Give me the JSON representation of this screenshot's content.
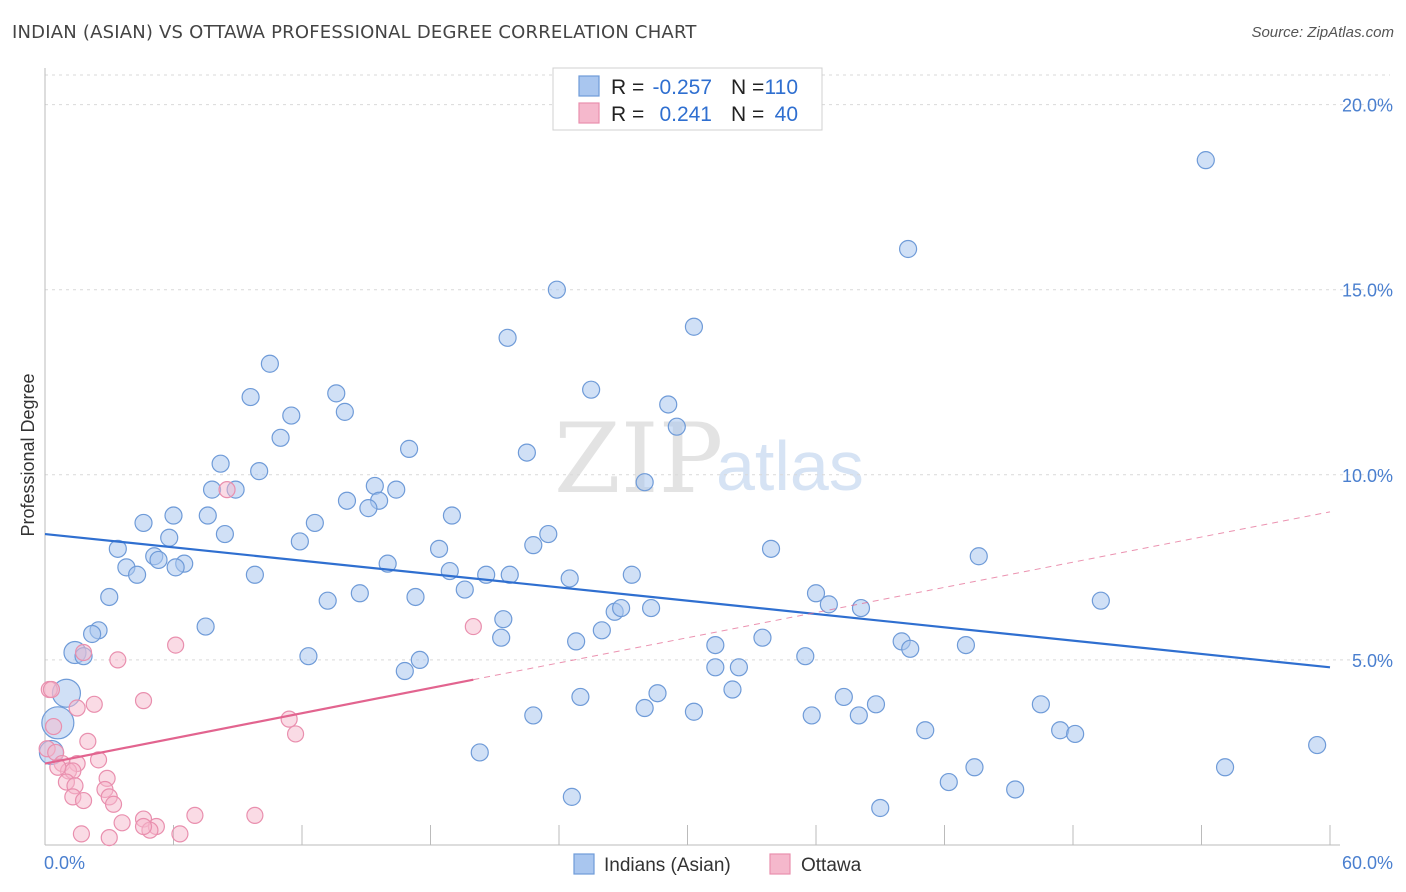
{
  "header": {
    "title": "INDIAN (ASIAN) VS OTTAWA PROFESSIONAL DEGREE CORRELATION CHART",
    "source": "Source: ZipAtlas.com"
  },
  "watermark": {
    "part1": "ZIP",
    "part2": "atlas"
  },
  "legend_top": {
    "rows": [
      {
        "r_label": "R =",
        "r_value": "-0.257",
        "n_label": "N =",
        "n_value": "110"
      },
      {
        "r_label": "R =",
        "r_value": "0.241",
        "n_label": "N =",
        "n_value": "40"
      }
    ]
  },
  "legend_bottom": {
    "items": [
      "Indians (Asian)",
      "Ottawa"
    ]
  },
  "colors": {
    "blue_fill": "#a9c6ef",
    "blue_stroke": "#6f9bd8",
    "blue_line": "#2f6fd0",
    "pink_fill": "#f5b8cc",
    "pink_stroke": "#e98fae",
    "pink_line": "#e2648f",
    "grid": "#d9d9d9",
    "tick_text": "#4a7fcf"
  },
  "chart_data": {
    "type": "scatter",
    "title": "INDIAN (ASIAN) VS OTTAWA PROFESSIONAL DEGREE CORRELATION CHART",
    "xlabel": "",
    "ylabel": "Professional Degree",
    "xlim": [
      0,
      60
    ],
    "ylim": [
      0,
      20.8
    ],
    "x_tick_labels": [
      "0.0%",
      "60.0%"
    ],
    "y_ticks": [
      5,
      10,
      15,
      20
    ],
    "y_tick_labels": [
      "5.0%",
      "10.0%",
      "15.0%",
      "20.0%"
    ],
    "grid": true,
    "legend_position": "top-center",
    "series": [
      {
        "name": "Indians (Asian)",
        "r": -0.257,
        "n": 110,
        "trend": {
          "x": [
            0,
            60
          ],
          "y": [
            8.4,
            4.8
          ],
          "dashed_from": null
        },
        "points": [
          [
            54.2,
            18.5
          ],
          [
            40.3,
            16.1
          ],
          [
            23.9,
            15.0
          ],
          [
            21.6,
            13.7
          ],
          [
            30.3,
            14.0
          ],
          [
            10.5,
            13.0
          ],
          [
            9.6,
            12.1
          ],
          [
            13.6,
            12.2
          ],
          [
            11.5,
            11.6
          ],
          [
            14.0,
            11.7
          ],
          [
            25.5,
            12.3
          ],
          [
            29.1,
            11.9
          ],
          [
            29.5,
            11.3
          ],
          [
            11.0,
            11.0
          ],
          [
            17.0,
            10.7
          ],
          [
            22.5,
            10.6
          ],
          [
            8.2,
            10.3
          ],
          [
            10.0,
            10.1
          ],
          [
            7.8,
            9.6
          ],
          [
            8.9,
            9.6
          ],
          [
            15.4,
            9.7
          ],
          [
            16.4,
            9.6
          ],
          [
            28.0,
            9.8
          ],
          [
            14.1,
            9.3
          ],
          [
            15.6,
            9.3
          ],
          [
            15.1,
            9.1
          ],
          [
            7.6,
            8.9
          ],
          [
            6.0,
            8.9
          ],
          [
            4.6,
            8.7
          ],
          [
            12.6,
            8.7
          ],
          [
            19.0,
            8.9
          ],
          [
            8.4,
            8.4
          ],
          [
            5.8,
            8.3
          ],
          [
            11.9,
            8.2
          ],
          [
            23.5,
            8.4
          ],
          [
            3.4,
            8.0
          ],
          [
            18.4,
            8.0
          ],
          [
            22.8,
            8.1
          ],
          [
            33.9,
            8.0
          ],
          [
            43.6,
            7.8
          ],
          [
            5.1,
            7.8
          ],
          [
            5.3,
            7.7
          ],
          [
            3.8,
            7.5
          ],
          [
            6.5,
            7.6
          ],
          [
            6.1,
            7.5
          ],
          [
            16.0,
            7.6
          ],
          [
            4.3,
            7.3
          ],
          [
            9.8,
            7.3
          ],
          [
            18.9,
            7.4
          ],
          [
            20.6,
            7.3
          ],
          [
            21.7,
            7.3
          ],
          [
            24.5,
            7.2
          ],
          [
            27.4,
            7.3
          ],
          [
            19.6,
            6.9
          ],
          [
            14.7,
            6.8
          ],
          [
            36.0,
            6.8
          ],
          [
            3.0,
            6.7
          ],
          [
            17.3,
            6.7
          ],
          [
            13.2,
            6.6
          ],
          [
            49.3,
            6.6
          ],
          [
            36.6,
            6.5
          ],
          [
            26.6,
            6.3
          ],
          [
            26.9,
            6.4
          ],
          [
            28.3,
            6.4
          ],
          [
            38.1,
            6.4
          ],
          [
            21.4,
            6.1
          ],
          [
            7.5,
            5.9
          ],
          [
            26.0,
            5.8
          ],
          [
            2.5,
            5.8
          ],
          [
            2.2,
            5.7
          ],
          [
            21.3,
            5.6
          ],
          [
            24.8,
            5.5
          ],
          [
            33.5,
            5.6
          ],
          [
            31.3,
            5.4
          ],
          [
            40.0,
            5.5
          ],
          [
            43.0,
            5.4
          ],
          [
            40.4,
            5.3
          ],
          [
            1.4,
            5.2
          ],
          [
            1.8,
            5.1
          ],
          [
            12.3,
            5.1
          ],
          [
            35.5,
            5.1
          ],
          [
            17.5,
            5.0
          ],
          [
            32.4,
            4.8
          ],
          [
            31.3,
            4.8
          ],
          [
            16.8,
            4.7
          ],
          [
            1.0,
            4.1
          ],
          [
            28.6,
            4.1
          ],
          [
            25.0,
            4.0
          ],
          [
            32.1,
            4.2
          ],
          [
            37.3,
            4.0
          ],
          [
            0.6,
            3.3
          ],
          [
            46.5,
            3.8
          ],
          [
            38.8,
            3.8
          ],
          [
            28.0,
            3.7
          ],
          [
            30.3,
            3.6
          ],
          [
            22.8,
            3.5
          ],
          [
            35.8,
            3.5
          ],
          [
            38.0,
            3.5
          ],
          [
            41.1,
            3.1
          ],
          [
            47.4,
            3.1
          ],
          [
            48.1,
            3.0
          ],
          [
            59.4,
            2.7
          ],
          [
            20.3,
            2.5
          ],
          [
            0.3,
            2.5
          ],
          [
            55.1,
            2.1
          ],
          [
            43.4,
            2.1
          ],
          [
            42.2,
            1.7
          ],
          [
            45.3,
            1.5
          ],
          [
            24.6,
            1.3
          ],
          [
            39.0,
            1.0
          ]
        ]
      },
      {
        "name": "Ottawa",
        "r": 0.241,
        "n": 40,
        "trend": {
          "x": [
            0,
            60
          ],
          "y": [
            2.2,
            9.0
          ],
          "dashed_from": 20
        },
        "points": [
          [
            8.5,
            9.6
          ],
          [
            20.0,
            5.9
          ],
          [
            6.1,
            5.4
          ],
          [
            1.8,
            5.2
          ],
          [
            3.4,
            5.0
          ],
          [
            0.2,
            4.2
          ],
          [
            0.3,
            4.2
          ],
          [
            4.6,
            3.9
          ],
          [
            2.3,
            3.8
          ],
          [
            1.5,
            3.7
          ],
          [
            11.4,
            3.4
          ],
          [
            11.7,
            3.0
          ],
          [
            0.4,
            3.2
          ],
          [
            2.0,
            2.8
          ],
          [
            0.1,
            2.6
          ],
          [
            0.5,
            2.5
          ],
          [
            0.8,
            2.2
          ],
          [
            1.5,
            2.2
          ],
          [
            2.5,
            2.3
          ],
          [
            1.1,
            2.0
          ],
          [
            1.3,
            2.0
          ],
          [
            0.6,
            2.1
          ],
          [
            2.9,
            1.8
          ],
          [
            1.0,
            1.7
          ],
          [
            1.4,
            1.6
          ],
          [
            2.8,
            1.5
          ],
          [
            1.3,
            1.3
          ],
          [
            1.8,
            1.2
          ],
          [
            3.0,
            1.3
          ],
          [
            3.2,
            1.1
          ],
          [
            4.6,
            0.7
          ],
          [
            7.0,
            0.8
          ],
          [
            9.8,
            0.8
          ],
          [
            3.6,
            0.6
          ],
          [
            5.2,
            0.5
          ],
          [
            4.9,
            0.4
          ],
          [
            6.3,
            0.3
          ],
          [
            4.6,
            0.5
          ],
          [
            1.7,
            0.3
          ],
          [
            3.0,
            0.2
          ]
        ]
      }
    ]
  }
}
